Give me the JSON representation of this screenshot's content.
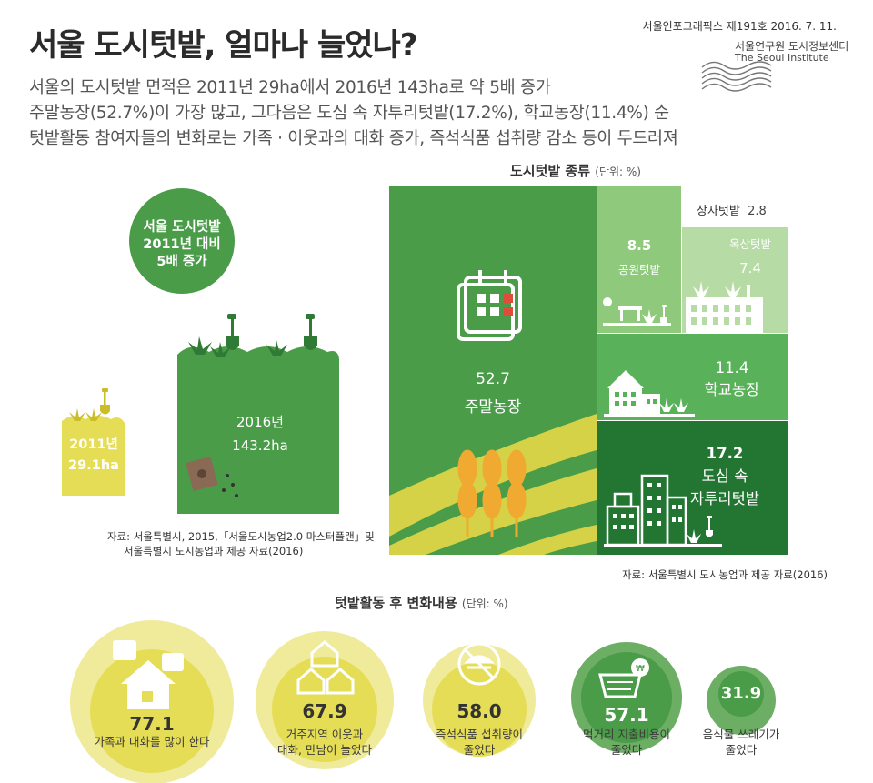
{
  "header": {
    "title": "서울 도시텃밭, 얼마나 늘었나?",
    "subtitle_lines": [
      "서울의 도시텃밭 면적은 2011년 29ha에서 2016년 143ha로 약 5배 증가",
      "주말농장(52.7%)이 가장 많고, 그다음은 도심 속 자투리텃밭(17.2%), 학교농장(11.4%) 순",
      "텃밭활동 참여자들의 변화로는 가족 · 이웃과의 대화 증가, 즉석식품 섭취량 감소 등이 두드러져"
    ],
    "issue": "서울인포그래픽스 제191호 2016. 7. 11.",
    "org_ko": "서울연구원 도시정보센터",
    "org_en": "The Seoul Institute"
  },
  "growth": {
    "badge_lines": [
      "서울 도시텃밭",
      "2011년 대비",
      "5배 증가"
    ],
    "year_2011": "2011년",
    "value_2011": "29.1ha",
    "year_2016": "2016년",
    "value_2016": "143.2ha",
    "source_lines": [
      "자료: 서울특별시, 2015,「서울도시농업2.0 마스터플랜」및",
      "서울특별시 도시농업과 제공 자료(2016)"
    ]
  },
  "treemap": {
    "title": "도시텃밭 종류",
    "unit": "(단위: %)",
    "source": "자료: 서울특별시 도시농업과 제공 자료(2016)"
  },
  "activity": {
    "title": "텃밭활동 후 변화내용",
    "unit": "(단위: %)"
  },
  "colors": {
    "weekend": "#4a9c49",
    "park": "#8ec97c",
    "rooftop": "#b6dba5",
    "box": "#ffffff",
    "school": "#59b25a",
    "downtown": "#237532",
    "yellow": "#e6dd57",
    "yellow_light": "#f0eb9a",
    "green_bubble": "#6cae63"
  },
  "chart_data": [
    {
      "type": "bar",
      "title": "서울 도시텃밭 면적",
      "categories": [
        "2011년",
        "2016년"
      ],
      "values": [
        29.1,
        143.2
      ],
      "unit": "ha"
    },
    {
      "type": "treemap",
      "title": "도시텃밭 종류",
      "unit": "%",
      "items": [
        {
          "name": "주말농장",
          "value": 52.7
        },
        {
          "name": "도심 속 자투리텃밭",
          "value": 17.2
        },
        {
          "name": "학교농장",
          "value": 11.4
        },
        {
          "name": "공원텃밭",
          "value": 8.5
        },
        {
          "name": "옥상텃밭",
          "value": 7.4
        },
        {
          "name": "상자텃밭",
          "value": 2.8
        }
      ]
    },
    {
      "type": "bubble",
      "title": "텃밭활동 후 변화내용",
      "unit": "%",
      "items": [
        {
          "label_lines": [
            "가족과 대화를 많이 한다"
          ],
          "value": 77.1
        },
        {
          "label_lines": [
            "거주지역 이웃과",
            "대화, 만남이 늘었다"
          ],
          "value": 67.9
        },
        {
          "label_lines": [
            "즉석식품 섭취량이",
            "줄었다"
          ],
          "value": 58.0
        },
        {
          "label_lines": [
            "먹거리 지출비용이",
            "줄었다"
          ],
          "value": 57.1
        },
        {
          "label_lines": [
            "음식물 쓰레기가",
            "줄었다"
          ],
          "value": 31.9
        }
      ]
    }
  ]
}
